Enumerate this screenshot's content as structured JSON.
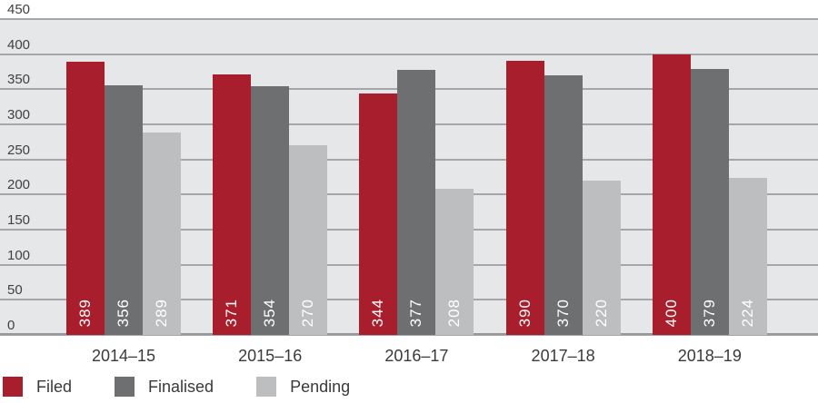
{
  "chart_data": {
    "type": "bar",
    "title": "",
    "categories": [
      "2014–15",
      "2015–16",
      "2016–17",
      "2017–18",
      "2018–19"
    ],
    "series": [
      {
        "name": "Filed",
        "color": "#A91E2C",
        "values": [
          389,
          371,
          344,
          390,
          400
        ]
      },
      {
        "name": "Finalised",
        "color": "#6E6F71",
        "values": [
          356,
          354,
          377,
          370,
          379
        ]
      },
      {
        "name": "Pending",
        "color": "#BDBEC0",
        "values": [
          289,
          270,
          208,
          220,
          224
        ]
      }
    ],
    "xlabel": "",
    "ylabel": "",
    "ylim": [
      0,
      450
    ],
    "yticks": [
      450,
      400,
      350,
      300,
      250,
      200,
      150,
      100,
      50,
      0
    ],
    "grid": "horizontal",
    "legend_position": "bottom-left",
    "plot_background": "#E6E7E8",
    "grid_color": "#A4A6A9",
    "axis_label_color": "#414042",
    "bar_value_label_color": "#FFFFFF",
    "value_labels_shown": true
  }
}
